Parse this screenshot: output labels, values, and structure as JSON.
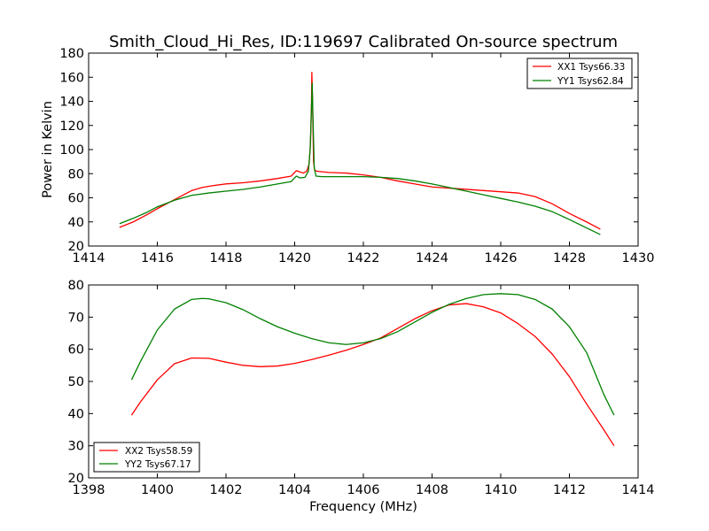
{
  "chart_data": [
    {
      "type": "line",
      "title": "Smith_Cloud_Hi_Res, ID:119697 Calibrated On-source spectrum",
      "xlabel": "",
      "ylabel": "Power in Kelvin",
      "xlim": [
        1414,
        1430
      ],
      "ylim": [
        20,
        180
      ],
      "xticks": [
        "1414",
        "1416",
        "1418",
        "1420",
        "1422",
        "1424",
        "1426",
        "1428",
        "1430"
      ],
      "yticks": [
        "20",
        "40",
        "60",
        "80",
        "100",
        "120",
        "140",
        "160",
        "180"
      ],
      "legend_position": "top-right",
      "grid": false,
      "series": [
        {
          "name": "XX1 Tsys66.33",
          "color": "#ff0000",
          "points": [
            [
              1414.9,
              35.5
            ],
            [
              1415.3,
              40
            ],
            [
              1415.7,
              46
            ],
            [
              1416,
              51
            ],
            [
              1416.5,
              58.5
            ],
            [
              1417,
              66
            ],
            [
              1417.3,
              68.5
            ],
            [
              1417.6,
              70
            ],
            [
              1418,
              71.5
            ],
            [
              1418.5,
              72.5
            ],
            [
              1419,
              74
            ],
            [
              1419.5,
              76
            ],
            [
              1419.9,
              78
            ],
            [
              1420.05,
              82.5
            ],
            [
              1420.15,
              81.5
            ],
            [
              1420.25,
              80.5
            ],
            [
              1420.35,
              82
            ],
            [
              1420.42,
              88
            ],
            [
              1420.46,
              105
            ],
            [
              1420.49,
              140
            ],
            [
              1420.5,
              164
            ],
            [
              1420.52,
              140
            ],
            [
              1420.55,
              90
            ],
            [
              1420.58,
              83
            ],
            [
              1420.65,
              82
            ],
            [
              1421,
              81
            ],
            [
              1421.5,
              80.5
            ],
            [
              1422,
              79
            ],
            [
              1422.5,
              77
            ],
            [
              1423,
              74
            ],
            [
              1423.5,
              71.5
            ],
            [
              1424,
              69
            ],
            [
              1424.5,
              68
            ],
            [
              1425,
              67
            ],
            [
              1425.5,
              66
            ],
            [
              1426,
              65
            ],
            [
              1426.5,
              64
            ],
            [
              1427,
              61
            ],
            [
              1427.5,
              55
            ],
            [
              1428,
              47
            ],
            [
              1428.5,
              40
            ],
            [
              1428.9,
              34
            ]
          ]
        },
        {
          "name": "YY1 Tsys62.84",
          "color": "#008000",
          "points": [
            [
              1414.9,
              38.5
            ],
            [
              1415.3,
              43
            ],
            [
              1415.7,
              48
            ],
            [
              1416,
              52.5
            ],
            [
              1416.5,
              58
            ],
            [
              1417,
              62
            ],
            [
              1417.5,
              64
            ],
            [
              1418,
              65.5
            ],
            [
              1418.5,
              67
            ],
            [
              1419,
              69
            ],
            [
              1419.5,
              71.5
            ],
            [
              1419.9,
              73.5
            ],
            [
              1420.05,
              78
            ],
            [
              1420.15,
              76.5
            ],
            [
              1420.3,
              77
            ],
            [
              1420.4,
              82
            ],
            [
              1420.45,
              100
            ],
            [
              1420.49,
              135
            ],
            [
              1420.51,
              155
            ],
            [
              1420.53,
              130
            ],
            [
              1420.57,
              85
            ],
            [
              1420.62,
              78
            ],
            [
              1420.8,
              77.5
            ],
            [
              1421,
              77.5
            ],
            [
              1421.5,
              77.5
            ],
            [
              1422,
              77.5
            ],
            [
              1422.5,
              77
            ],
            [
              1423,
              76
            ],
            [
              1423.5,
              74
            ],
            [
              1424,
              71.5
            ],
            [
              1424.5,
              68.5
            ],
            [
              1425,
              65.5
            ],
            [
              1425.5,
              62.5
            ],
            [
              1426,
              59.5
            ],
            [
              1426.5,
              56.5
            ],
            [
              1427,
              53
            ],
            [
              1427.5,
              48.5
            ],
            [
              1428,
              42
            ],
            [
              1428.5,
              35
            ],
            [
              1428.9,
              29.5
            ]
          ]
        }
      ]
    },
    {
      "type": "line",
      "title": "",
      "xlabel": "Frequency (MHz)",
      "ylabel": "",
      "xlim": [
        1398,
        1414
      ],
      "ylim": [
        20,
        80
      ],
      "xticks": [
        "1398",
        "1400",
        "1402",
        "1404",
        "1406",
        "1408",
        "1410",
        "1412",
        "1414"
      ],
      "yticks": [
        "20",
        "30",
        "40",
        "50",
        "60",
        "70",
        "80"
      ],
      "legend_position": "bottom-left",
      "grid": false,
      "series": [
        {
          "name": "XX2 Tsys58.59",
          "color": "#ff0000",
          "points": [
            [
              1399.25,
              39.5
            ],
            [
              1399.5,
              43.5
            ],
            [
              1400,
              50.5
            ],
            [
              1400.5,
              55.5
            ],
            [
              1401,
              57.3
            ],
            [
              1401.5,
              57.2
            ],
            [
              1402,
              56
            ],
            [
              1402.5,
              55
            ],
            [
              1403,
              54.6
            ],
            [
              1403.5,
              54.8
            ],
            [
              1404,
              55.6
            ],
            [
              1404.5,
              56.8
            ],
            [
              1405,
              58.2
            ],
            [
              1405.5,
              59.7
            ],
            [
              1406,
              61.5
            ],
            [
              1406.5,
              63.5
            ],
            [
              1407,
              66.5
            ],
            [
              1407.5,
              69.5
            ],
            [
              1408,
              72
            ],
            [
              1408.5,
              73.8
            ],
            [
              1409,
              74.2
            ],
            [
              1409.5,
              73.2
            ],
            [
              1410,
              71.3
            ],
            [
              1410.5,
              68
            ],
            [
              1411,
              64
            ],
            [
              1411.5,
              58.5
            ],
            [
              1412,
              51.5
            ],
            [
              1412.5,
              43
            ],
            [
              1413,
              35
            ],
            [
              1413.3,
              30
            ]
          ]
        },
        {
          "name": "YY2 Tsys67.17",
          "color": "#008000",
          "points": [
            [
              1399.25,
              50.5
            ],
            [
              1399.5,
              56
            ],
            [
              1400,
              66
            ],
            [
              1400.5,
              72.5
            ],
            [
              1401,
              75.5
            ],
            [
              1401.3,
              75.8
            ],
            [
              1401.5,
              75.7
            ],
            [
              1402,
              74.5
            ],
            [
              1402.5,
              72.3
            ],
            [
              1403,
              69.5
            ],
            [
              1403.5,
              67
            ],
            [
              1404,
              65
            ],
            [
              1404.5,
              63.3
            ],
            [
              1405,
              62
            ],
            [
              1405.5,
              61.5
            ],
            [
              1406,
              62
            ],
            [
              1406.5,
              63.3
            ],
            [
              1407,
              65.5
            ],
            [
              1407.5,
              68.5
            ],
            [
              1408,
              71.5
            ],
            [
              1408.5,
              74
            ],
            [
              1409,
              75.8
            ],
            [
              1409.5,
              77
            ],
            [
              1410,
              77.3
            ],
            [
              1410.5,
              77
            ],
            [
              1411,
              75.5
            ],
            [
              1411.5,
              72.5
            ],
            [
              1412,
              67
            ],
            [
              1412.5,
              59
            ],
            [
              1413,
              46
            ],
            [
              1413.3,
              39.5
            ]
          ]
        }
      ]
    }
  ]
}
